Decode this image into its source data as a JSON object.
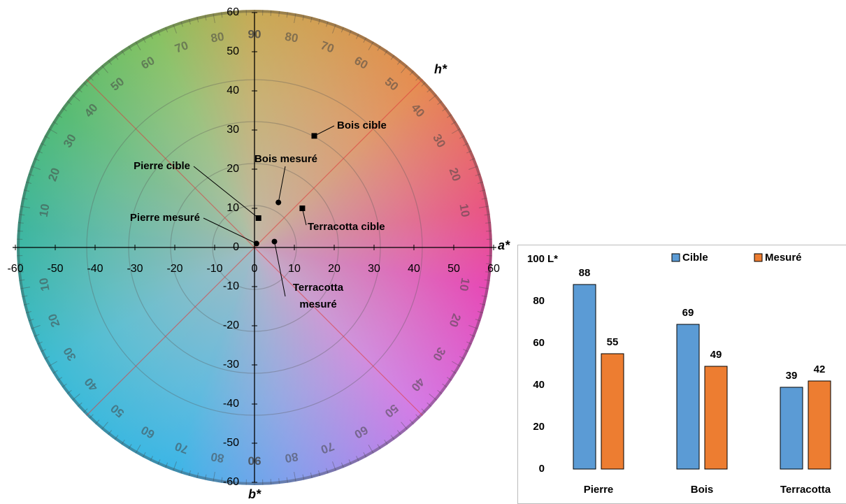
{
  "chart_data": [
    {
      "type": "scatter",
      "x_label": "a*",
      "y_label": "b*",
      "angle_label": "h*",
      "xlim": [
        -60,
        60
      ],
      "ylim": [
        -60,
        60
      ],
      "xticks": [
        -60,
        -50,
        -40,
        -30,
        -20,
        -10,
        0,
        10,
        20,
        30,
        40,
        50,
        60
      ],
      "yticks": [
        -60,
        -50,
        -40,
        -30,
        -20,
        -10,
        0,
        10,
        20,
        30,
        40,
        50,
        60
      ],
      "hue_ticks": [
        10,
        20,
        30,
        40,
        50,
        60,
        70,
        80,
        90
      ],
      "color": "#000000",
      "points": [
        {
          "label": "Bois cible",
          "x": 15,
          "y": 28.5,
          "marker": "square"
        },
        {
          "label": "Bois mesuré",
          "x": 6,
          "y": 11.5,
          "marker": "circle"
        },
        {
          "label": "Pierre cible",
          "x": 1,
          "y": 7.5,
          "marker": "square"
        },
        {
          "label": "Pierre mesuré",
          "x": 0.5,
          "y": 1,
          "marker": "circle"
        },
        {
          "label": "Terracotta cible",
          "x": 12,
          "y": 10,
          "marker": "square"
        },
        {
          "label": "Terracotta mesuré",
          "x": 5,
          "y": 1.5,
          "marker": "circle"
        }
      ]
    },
    {
      "type": "bar",
      "y_label": "L*",
      "legend": "top",
      "categories": [
        "Pierre",
        "Bois",
        "Terracotta"
      ],
      "series": [
        {
          "name": "Cible",
          "color": "#5b9bd5",
          "values": [
            88,
            69,
            39
          ]
        },
        {
          "name": "Mesuré",
          "color": "#ed7d31",
          "values": [
            55,
            49,
            42
          ]
        }
      ],
      "ylim": [
        0,
        100
      ],
      "yticks": [
        0,
        20,
        40,
        60,
        80,
        100
      ]
    }
  ]
}
